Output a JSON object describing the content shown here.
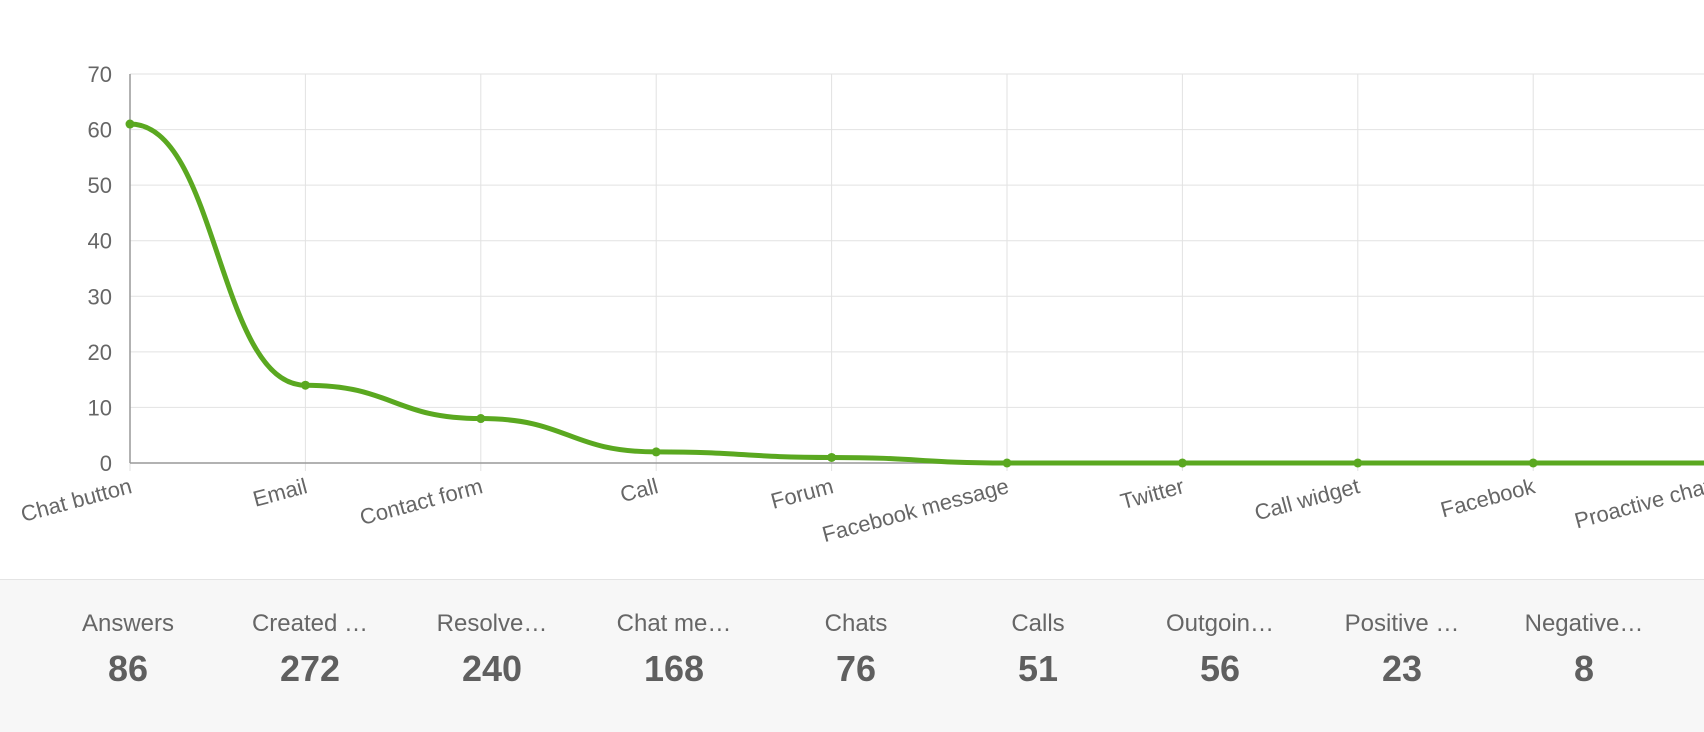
{
  "chart_data": {
    "type": "line",
    "categories": [
      "Chat button",
      "Email",
      "Contact form",
      "Call",
      "Forum",
      "Facebook message",
      "Twitter",
      "Call widget",
      "Facebook",
      "Proactive chat"
    ],
    "series": [
      {
        "color": "#5aa820",
        "values": [
          61,
          14,
          8,
          2,
          1,
          0,
          0,
          0,
          0,
          0
        ]
      }
    ],
    "ylim": [
      0,
      70
    ],
    "yticks": [
      0,
      10,
      20,
      30,
      40,
      50,
      60,
      70
    ],
    "grid": true
  },
  "stats": [
    {
      "label": "Answers",
      "value": 86
    },
    {
      "label": "Created …",
      "value": 272
    },
    {
      "label": "Resolve…",
      "value": 240
    },
    {
      "label": "Chat me…",
      "value": 168
    },
    {
      "label": "Chats",
      "value": 76
    },
    {
      "label": "Calls",
      "value": 51
    },
    {
      "label": "Outgoin…",
      "value": 56
    },
    {
      "label": "Positive …",
      "value": 23
    },
    {
      "label": "Negative…",
      "value": 8
    }
  ]
}
